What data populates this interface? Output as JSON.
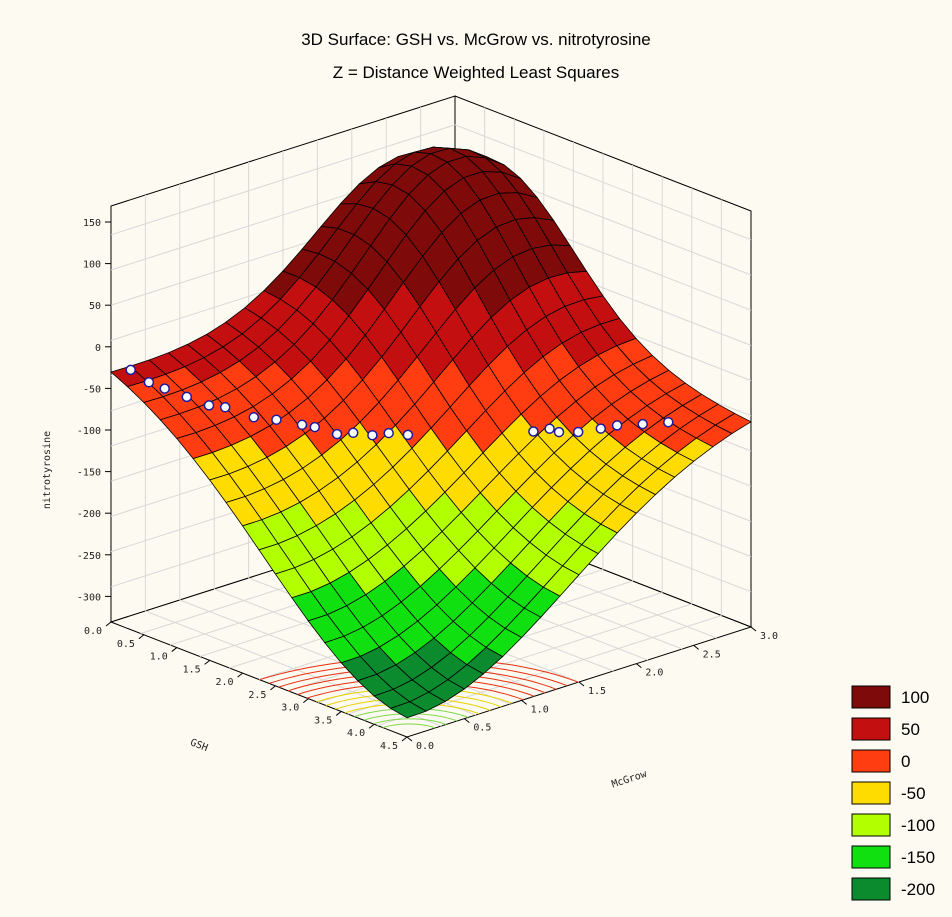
{
  "chart_data": {
    "type": "surface3d",
    "title": "3D Surface: GSH vs. McGrow vs. nitrotyrosine",
    "subtitle": "Z = Distance Weighted Least Squares",
    "z_ticks": [
      "150",
      "100",
      "50",
      "0",
      "-50",
      "-100",
      "-150",
      "-200",
      "-250",
      "-300"
    ],
    "zlabel": "nitrotyrosine",
    "x_ticks": [
      "0.0",
      "0.5",
      "1.0",
      "1.5",
      "2.0",
      "2.5",
      "3.0"
    ],
    "xlabel": "McGrow",
    "y_ticks": [
      "0.0",
      "0.5",
      "1.0",
      "1.5",
      "2.0",
      "2.5",
      "3.0",
      "3.5",
      "4.0",
      "4.5"
    ],
    "ylabel": "GSH",
    "legend": {
      "position": "right",
      "items": [
        {
          "label": "100",
          "color": "#7f0a0a"
        },
        {
          "label": "50",
          "color": "#c30f0f"
        },
        {
          "label": "0",
          "color": "#ff3d10"
        },
        {
          "label": "-50",
          "color": "#ffdc00"
        },
        {
          "label": "-100",
          "color": "#b2ff00"
        },
        {
          "label": "-150",
          "color": "#10e010"
        },
        {
          "label": "-200",
          "color": "#0b8a2e"
        }
      ]
    },
    "grid": true
  }
}
